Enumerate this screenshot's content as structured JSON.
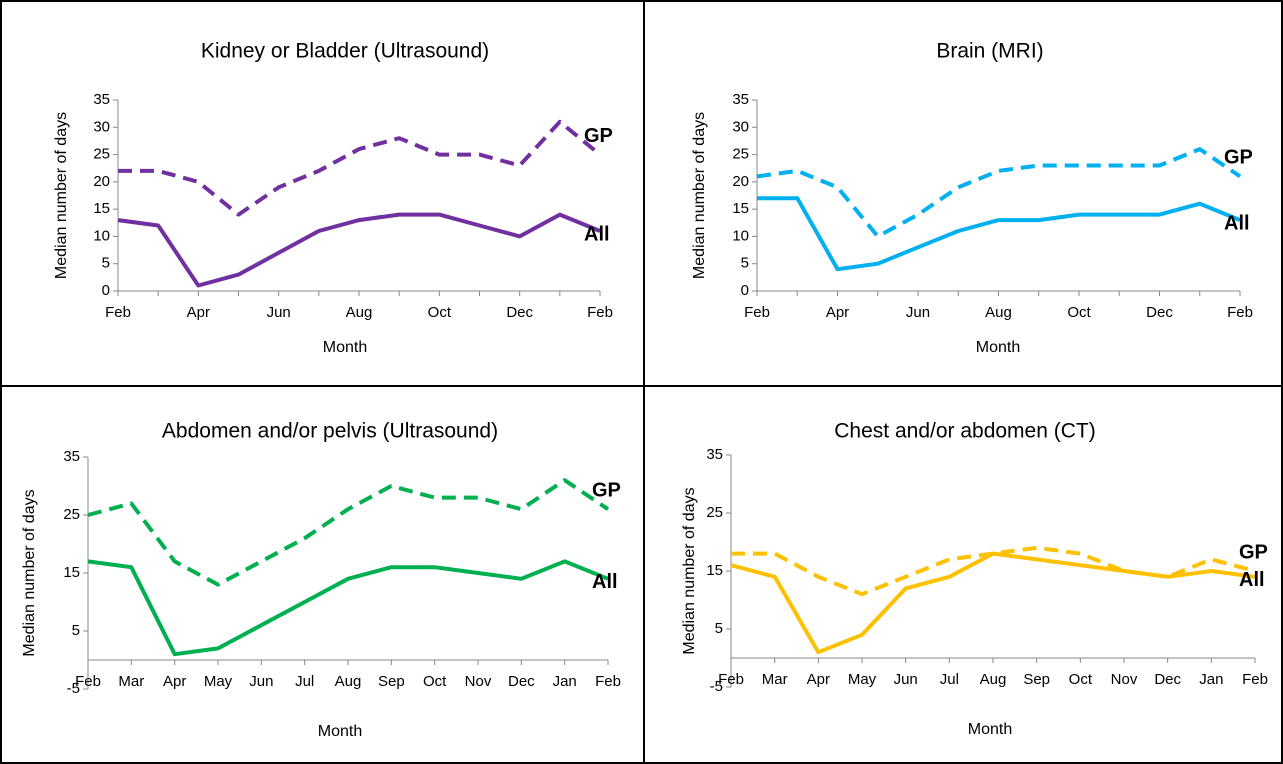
{
  "chart_data": [
    {
      "type": "line",
      "title": "Kidney or Bladder (Ultrasound)",
      "xlabel": "Month",
      "ylabel": "Median number of days",
      "categories": [
        "Feb",
        null,
        "Apr",
        null,
        "Jun",
        null,
        "Aug",
        null,
        "Oct",
        null,
        "Dec",
        null,
        "Feb"
      ],
      "ylim": [
        0,
        35
      ],
      "yticks": [
        0,
        5,
        10,
        15,
        20,
        25,
        30,
        35
      ],
      "series": [
        {
          "name": "GP",
          "color": "#7030a0",
          "dashed": true,
          "values": [
            22,
            22,
            20,
            14,
            19,
            22,
            26,
            28,
            25,
            25,
            23,
            31,
            25
          ]
        },
        {
          "name": "All",
          "color": "#7030a0",
          "dashed": false,
          "values": [
            13,
            12,
            1,
            3,
            7,
            11,
            13,
            14,
            14,
            12,
            10,
            14,
            11
          ]
        }
      ]
    },
    {
      "type": "line",
      "title": "Brain (MRI)",
      "xlabel": "Month",
      "ylabel": "Median number of days",
      "categories": [
        "Feb",
        null,
        "Apr",
        null,
        "Jun",
        null,
        "Aug",
        null,
        "Oct",
        null,
        "Dec",
        null,
        "Feb"
      ],
      "ylim": [
        0,
        35
      ],
      "yticks": [
        0,
        5,
        10,
        15,
        20,
        25,
        30,
        35
      ],
      "series": [
        {
          "name": "GP",
          "color": "#00b0f0",
          "dashed": true,
          "values": [
            21,
            22,
            19,
            10,
            14,
            19,
            22,
            23,
            23,
            23,
            23,
            26,
            21
          ]
        },
        {
          "name": "All",
          "color": "#00b0f0",
          "dashed": false,
          "values": [
            17,
            17,
            4,
            5,
            8,
            11,
            13,
            13,
            14,
            14,
            14,
            16,
            13
          ]
        }
      ]
    },
    {
      "type": "line",
      "title": "Abdomen and/or pelvis (Ultrasound)",
      "xlabel": "Month",
      "ylabel": "Median number of days",
      "categories": [
        "Feb",
        "Mar",
        "Apr",
        "May",
        "Jun",
        "Jul",
        "Aug",
        "Sep",
        "Oct",
        "Nov",
        "Dec",
        "Jan",
        "Feb"
      ],
      "ylim": [
        -5,
        35
      ],
      "yticks": [
        -5,
        5,
        15,
        25,
        35
      ],
      "series": [
        {
          "name": "GP",
          "color": "#00b050",
          "dashed": true,
          "values": [
            25,
            27,
            17,
            13,
            17,
            21,
            26,
            30,
            28,
            28,
            26,
            31,
            26
          ]
        },
        {
          "name": "All",
          "color": "#00b050",
          "dashed": false,
          "values": [
            17,
            16,
            1,
            2,
            6,
            10,
            14,
            16,
            16,
            15,
            14,
            17,
            14
          ]
        }
      ]
    },
    {
      "type": "line",
      "title": "Chest and/or abdomen (CT)",
      "xlabel": "Month",
      "ylabel": "Median number of days",
      "categories": [
        "Feb",
        "Mar",
        "Apr",
        "May",
        "Jun",
        "Jul",
        "Aug",
        "Sep",
        "Oct",
        "Nov",
        "Dec",
        "Jan",
        "Feb"
      ],
      "ylim": [
        -5,
        35
      ],
      "yticks": [
        -5,
        5,
        15,
        25,
        35
      ],
      "series": [
        {
          "name": "GP",
          "color": "#ffc000",
          "dashed": true,
          "values": [
            18,
            18,
            14,
            11,
            14,
            17,
            18,
            19,
            18,
            15,
            14,
            17,
            15
          ]
        },
        {
          "name": "All",
          "color": "#ffc000",
          "dashed": false,
          "values": [
            16,
            14,
            1,
            4,
            12,
            14,
            18,
            17,
            16,
            15,
            14,
            15,
            14
          ]
        }
      ]
    }
  ]
}
